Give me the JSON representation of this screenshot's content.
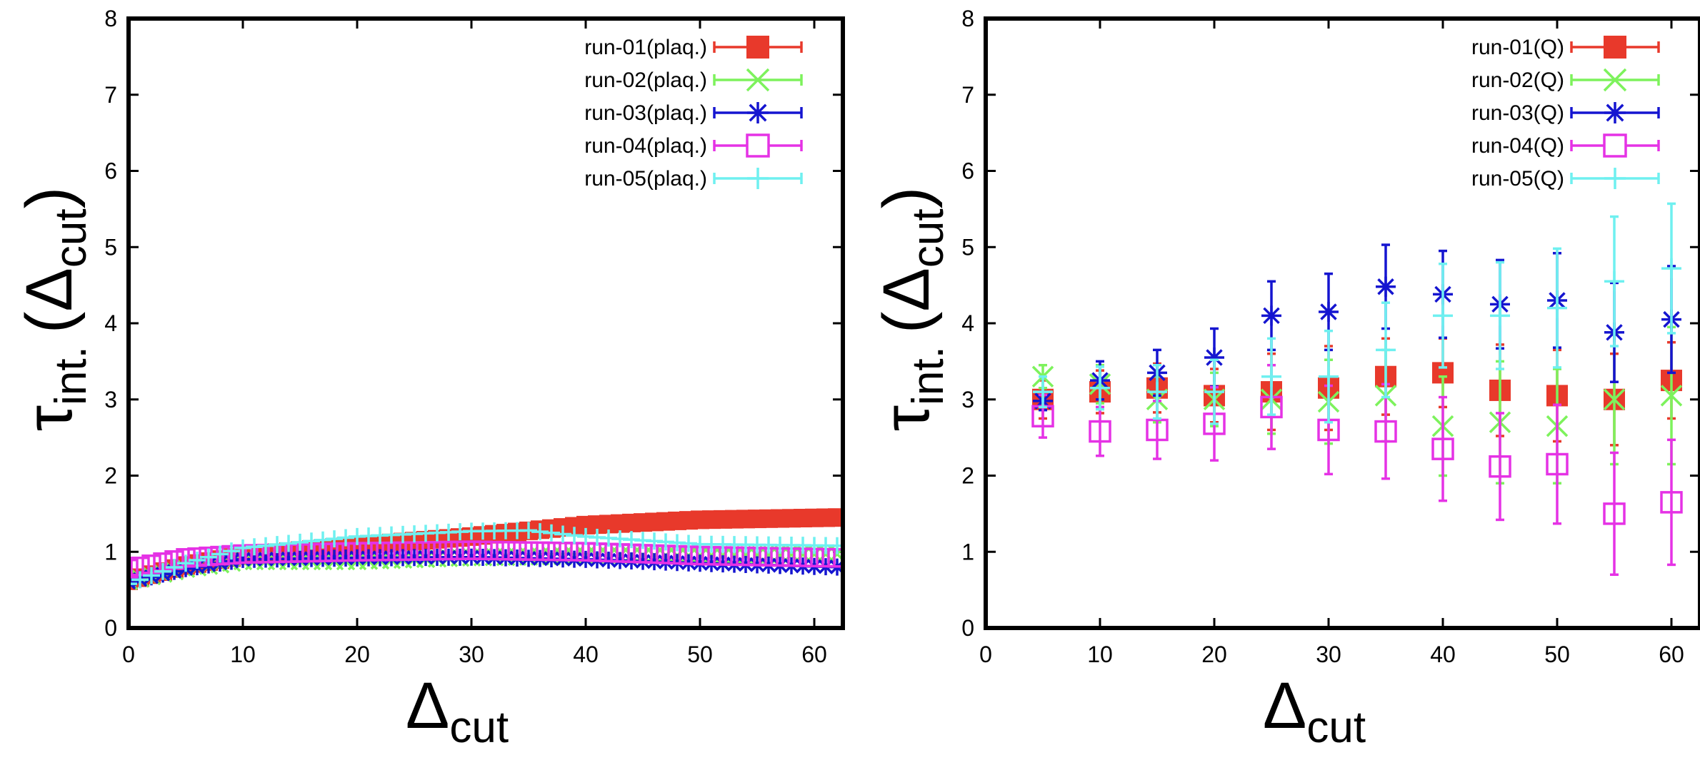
{
  "colors": {
    "run01": "#e8392b",
    "run02": "#7df25c",
    "run03": "#1515d0",
    "run04": "#e532e5",
    "run05": "#6ff0f0"
  },
  "chart_data": [
    {
      "type": "scatter",
      "panel": "left",
      "xlabel_main": "Δ",
      "xlabel_sub": "cut",
      "ylabel_main": "τ",
      "ylabel_sub": "int.",
      "ylabel_paren": "(Δ",
      "ylabel_paren_sub": "cut",
      "ylabel_close": ")",
      "xlim": [
        0,
        62.5
      ],
      "ylim": [
        0,
        8
      ],
      "xticks": [
        "0",
        "10",
        "20",
        "30",
        "40",
        "50",
        "60"
      ],
      "yticks": [
        "0",
        "1",
        "2",
        "3",
        "4",
        "5",
        "6",
        "7",
        "8"
      ],
      "legend": [
        "run-01(plaq.)",
        "run-02(plaq.)",
        "run-03(plaq.)",
        "run-04(plaq.)",
        "run-05(plaq.)"
      ],
      "series": [
        {
          "name": "run-01(plaq.)",
          "marker": "filled-square",
          "x_start": 0,
          "x_end": 62,
          "x_step": 1,
          "curve": [
            [
              0,
              0.62
            ],
            [
              5,
              0.82
            ],
            [
              10,
              0.95
            ],
            [
              20,
              1.08
            ],
            [
              30,
              1.2
            ],
            [
              40,
              1.35
            ],
            [
              50,
              1.42
            ],
            [
              62,
              1.45
            ]
          ]
        },
        {
          "name": "run-02(plaq.)",
          "marker": "cross",
          "x_start": 0,
          "x_end": 62,
          "x_step": 1,
          "curve": [
            [
              0,
              0.62
            ],
            [
              5,
              0.78
            ],
            [
              10,
              0.88
            ],
            [
              20,
              0.88
            ],
            [
              30,
              0.93
            ],
            [
              40,
              0.95
            ],
            [
              50,
              0.95
            ],
            [
              62,
              0.97
            ]
          ]
        },
        {
          "name": "run-03(plaq.)",
          "marker": "star",
          "x_start": 0,
          "x_end": 62,
          "x_step": 1,
          "curve": [
            [
              0,
              0.6
            ],
            [
              5,
              0.78
            ],
            [
              10,
              0.9
            ],
            [
              20,
              0.92
            ],
            [
              30,
              0.93
            ],
            [
              40,
              0.9
            ],
            [
              50,
              0.85
            ],
            [
              62,
              0.8
            ]
          ]
        },
        {
          "name": "run-04(plaq.)",
          "marker": "open-square",
          "x_start": 0,
          "x_end": 62,
          "x_step": 1,
          "curve": [
            [
              0,
              0.78
            ],
            [
              5,
              0.92
            ],
            [
              10,
              0.97
            ],
            [
              20,
              1.0
            ],
            [
              30,
              1.02
            ],
            [
              40,
              1.0
            ],
            [
              50,
              0.95
            ],
            [
              62,
              0.92
            ]
          ]
        },
        {
          "name": "run-05(plaq.)",
          "marker": "plus",
          "x_start": 0,
          "x_end": 62,
          "x_step": 1,
          "curve": [
            [
              0,
              0.58
            ],
            [
              5,
              0.85
            ],
            [
              10,
              1.05
            ],
            [
              20,
              1.2
            ],
            [
              30,
              1.27
            ],
            [
              35,
              1.28
            ],
            [
              40,
              1.2
            ],
            [
              50,
              1.1
            ],
            [
              62,
              1.08
            ]
          ]
        }
      ]
    },
    {
      "type": "scatter",
      "panel": "right",
      "xlabel_main": "Δ",
      "xlabel_sub": "cut",
      "ylabel_main": "τ",
      "ylabel_sub": "int.",
      "ylabel_paren": "(Δ",
      "ylabel_paren_sub": "cut",
      "ylabel_close": ")",
      "xlim": [
        0,
        62.5
      ],
      "ylim": [
        0,
        8
      ],
      "xticks": [
        "0",
        "10",
        "20",
        "30",
        "40",
        "50",
        "60"
      ],
      "yticks": [
        "0",
        "1",
        "2",
        "3",
        "4",
        "5",
        "6",
        "7",
        "8"
      ],
      "legend": [
        "run-01(Q)",
        "run-02(Q)",
        "run-03(Q)",
        "run-04(Q)",
        "run-05(Q)"
      ],
      "x": [
        5,
        10,
        15,
        20,
        25,
        30,
        35,
        40,
        45,
        50,
        55,
        60
      ],
      "series": [
        {
          "name": "run-01(Q)",
          "marker": "filled-square",
          "y": [
            3.0,
            3.1,
            3.15,
            3.05,
            3.1,
            3.15,
            3.3,
            3.35,
            3.12,
            3.05,
            3.0,
            3.25
          ],
          "err": [
            0.25,
            0.28,
            0.32,
            0.35,
            0.5,
            0.55,
            0.5,
            0.45,
            0.6,
            0.6,
            0.6,
            0.5
          ]
        },
        {
          "name": "run-02(Q)",
          "marker": "cross",
          "y": [
            3.3,
            3.2,
            3.0,
            3.0,
            3.0,
            2.97,
            3.05,
            2.65,
            2.7,
            2.65,
            3.0,
            3.05
          ],
          "err": [
            0.15,
            0.25,
            0.3,
            0.35,
            0.45,
            0.55,
            0.6,
            0.65,
            0.8,
            0.75,
            0.85,
            0.9
          ]
        },
        {
          "name": "run-03(Q)",
          "marker": "star",
          "y": [
            2.98,
            3.25,
            3.35,
            3.55,
            4.1,
            4.15,
            4.48,
            4.38,
            4.25,
            4.3,
            3.88,
            4.05
          ],
          "err": [
            0.12,
            0.25,
            0.3,
            0.38,
            0.45,
            0.5,
            0.55,
            0.57,
            0.58,
            0.62,
            0.65,
            0.7
          ]
        },
        {
          "name": "run-04(Q)",
          "marker": "open-square",
          "y": [
            2.78,
            2.58,
            2.6,
            2.68,
            2.9,
            2.6,
            2.58,
            2.35,
            2.12,
            2.15,
            1.5,
            1.65
          ],
          "err": [
            0.28,
            0.32,
            0.38,
            0.48,
            0.55,
            0.58,
            0.62,
            0.68,
            0.7,
            0.78,
            0.8,
            0.82
          ]
        },
        {
          "name": "run-05(Q)",
          "marker": "plus",
          "y": [
            3.1,
            3.15,
            3.1,
            3.1,
            3.3,
            3.3,
            3.65,
            4.1,
            4.1,
            4.2,
            4.55,
            4.72
          ],
          "err": [
            0.2,
            0.28,
            0.35,
            0.42,
            0.5,
            0.6,
            0.62,
            0.68,
            0.7,
            0.78,
            0.85,
            0.85
          ]
        }
      ]
    }
  ]
}
